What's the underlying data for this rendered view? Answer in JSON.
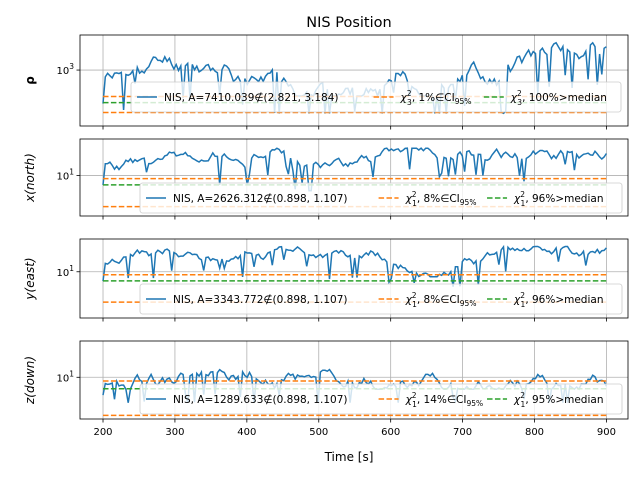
{
  "chart_data": {
    "type": "line",
    "title": "NIS Position",
    "xlabel": "Time [s]",
    "xlim": [
      168,
      930
    ],
    "xticks": [
      "200",
      "300",
      "400",
      "500",
      "600",
      "700",
      "800",
      "900"
    ],
    "xtick_values": [
      200,
      300,
      400,
      500,
      600,
      700,
      800,
      900
    ],
    "colors": {
      "nis": "#1f77b4",
      "ci": "#ff7f0e",
      "median": "#2ca02c",
      "grid": "#b0b0b0"
    },
    "panels": [
      {
        "ylabel": "ρ",
        "ylabel_bold": true,
        "ytick_label_base": "10",
        "ytick_label_exp": "3",
        "ytick_value": 1000,
        "ylim_log": [
          30,
          9000
        ],
        "ci_lower": 70,
        "ci_upper": 190,
        "median": 130,
        "nis_range": [
          60,
          7000
        ],
        "seed": 11,
        "legend": {
          "nis": "NIS, A=7410.039∉(2.821, 3.184)",
          "ci_chi": "χ",
          "ci_sup": "2",
          "ci_sub": "3",
          "ci_text": ", 1%∈CI",
          "ci_ci_sub": "95%",
          "median_chi": "χ",
          "median_sup": "2",
          "median_sub": "3",
          "median_text": ", 100%>median"
        }
      },
      {
        "ylabel": "x(north)",
        "ylabel_bold": false,
        "ytick_label_base": "10",
        "ytick_label_exp": "1",
        "ytick_value": 10,
        "ylim_log": [
          0.5,
          150
        ],
        "ci_lower": 1,
        "ci_upper": 8,
        "median": 5,
        "nis_range": [
          3,
          90
        ],
        "seed": 23,
        "legend": {
          "nis": "NIS, A=2626.312∉(0.898, 1.107)",
          "ci_chi": "χ",
          "ci_sup": "2",
          "ci_sub": "1",
          "ci_text": ", 8%∈CI",
          "ci_ci_sub": "95%",
          "median_chi": "χ",
          "median_sup": "2",
          "median_sub": "1",
          "median_text": ", 96%>median"
        }
      },
      {
        "ylabel": "y(east)",
        "ylabel_bold": false,
        "ytick_label_base": "10",
        "ytick_label_exp": "1",
        "ytick_value": 10,
        "ylim_log": [
          0.3,
          120
        ],
        "ci_lower": 1,
        "ci_upper": 8,
        "median": 5,
        "nis_range": [
          3,
          80
        ],
        "seed": 37,
        "legend": {
          "nis": "NIS, A=3343.772∉(0.898, 1.107)",
          "ci_chi": "χ",
          "ci_sup": "2",
          "ci_sub": "1",
          "ci_text": ", 8%∈CI",
          "ci_ci_sub": "95%",
          "median_chi": "χ",
          "median_sup": "2",
          "median_sub": "1",
          "median_text": ", 96%>median"
        }
      },
      {
        "ylabel": "z(down)",
        "ylabel_bold": false,
        "ytick_label_base": "10",
        "ytick_label_exp": "1",
        "ytick_value": 10,
        "ylim_log": [
          0.8,
          90
        ],
        "ci_lower": 1,
        "ci_upper": 8,
        "median": 5,
        "nis_range": [
          2,
          70
        ],
        "seed": 53,
        "legend": {
          "nis": "NIS, A=1289.633∉(0.898, 1.107)",
          "ci_chi": "χ",
          "ci_sup": "2",
          "ci_sub": "1",
          "ci_text": ", 14%∈CI",
          "ci_ci_sub": "95%",
          "median_chi": "χ",
          "median_sup": "2",
          "median_sub": "1",
          "median_text": ", 95%>median"
        }
      }
    ]
  }
}
